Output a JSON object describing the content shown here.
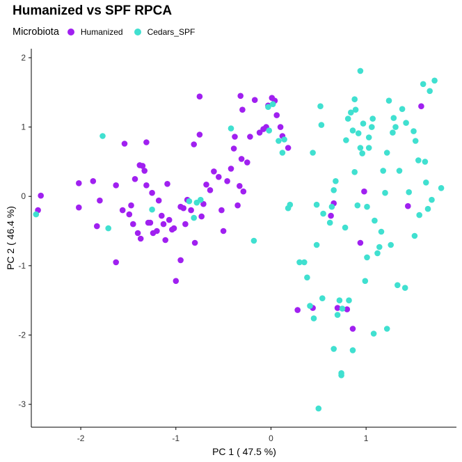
{
  "chart_data": {
    "type": "scatter",
    "title": "Humanized vs SPF RPCA",
    "xlabel": "PC 1 ( 47.5 %)",
    "ylabel": "PC 2 ( 46.4 %)",
    "xlim": [
      -2.52,
      1.95
    ],
    "ylim": [
      -3.33,
      2.13
    ],
    "x_ticks": [
      -2,
      -1,
      0,
      1
    ],
    "y_ticks": [
      -3,
      -2,
      -1,
      0,
      1,
      2
    ],
    "grid": false,
    "legend": {
      "title": "Microbiota",
      "position": "top-left"
    },
    "series": [
      {
        "name": "Humanized",
        "color": "#A020F0",
        "points": [
          [
            -2.42,
            0.01
          ],
          [
            -2.45,
            -0.2
          ],
          [
            -2.02,
            0.19
          ],
          [
            -2.02,
            -0.16
          ],
          [
            -1.87,
            0.22
          ],
          [
            -1.8,
            -0.06
          ],
          [
            -1.83,
            -0.43
          ],
          [
            -1.63,
            0.16
          ],
          [
            -1.63,
            -0.95
          ],
          [
            -1.56,
            -0.2
          ],
          [
            -1.54,
            0.76
          ],
          [
            -1.49,
            -0.26
          ],
          [
            -1.47,
            -0.13
          ],
          [
            -1.45,
            -0.4
          ],
          [
            -1.43,
            0.25
          ],
          [
            -1.4,
            -0.53
          ],
          [
            -1.38,
            0.45
          ],
          [
            -1.35,
            0.44
          ],
          [
            -1.37,
            -0.61
          ],
          [
            -1.33,
            0.37
          ],
          [
            -1.31,
            0.16
          ],
          [
            -1.29,
            -0.38
          ],
          [
            -1.31,
            0.78
          ],
          [
            -1.27,
            -0.38
          ],
          [
            -1.25,
            0.05
          ],
          [
            -1.24,
            -0.53
          ],
          [
            -1.2,
            -0.5
          ],
          [
            -1.18,
            -0.06
          ],
          [
            -1.15,
            -0.28
          ],
          [
            -1.13,
            -0.4
          ],
          [
            -1.11,
            -0.63
          ],
          [
            -1.09,
            0.18
          ],
          [
            -1.07,
            -0.34
          ],
          [
            -1.04,
            -0.48
          ],
          [
            -1.02,
            -0.46
          ],
          [
            -1.0,
            -1.22
          ],
          [
            -0.95,
            -0.92
          ],
          [
            -0.95,
            -0.15
          ],
          [
            -0.92,
            -0.17
          ],
          [
            -0.9,
            -0.4
          ],
          [
            -0.88,
            -0.05
          ],
          [
            -0.84,
            -0.2
          ],
          [
            -0.81,
            0.75
          ],
          [
            -0.8,
            -0.67
          ],
          [
            -0.75,
            1.44
          ],
          [
            -0.75,
            0.89
          ],
          [
            -0.73,
            -0.29
          ],
          [
            -0.71,
            -0.11
          ],
          [
            -0.68,
            0.17
          ],
          [
            -0.64,
            0.09
          ],
          [
            -0.6,
            0.36
          ],
          [
            -0.55,
            0.28
          ],
          [
            -0.52,
            -0.2
          ],
          [
            -0.5,
            -0.5
          ],
          [
            -0.46,
            0.22
          ],
          [
            -0.42,
            0.4
          ],
          [
            -0.39,
            0.69
          ],
          [
            -0.38,
            0.86
          ],
          [
            -0.35,
            -0.13
          ],
          [
            -0.33,
            0.15
          ],
          [
            -0.31,
            0.54
          ],
          [
            -0.32,
            1.45
          ],
          [
            -0.3,
            1.25
          ],
          [
            -0.29,
            0.07
          ],
          [
            -0.25,
            0.49
          ],
          [
            -0.22,
            0.86
          ],
          [
            -0.17,
            1.39
          ],
          [
            -0.12,
            0.92
          ],
          [
            -0.08,
            0.97
          ],
          [
            -0.05,
            1.0
          ],
          [
            -0.03,
            1.31
          ],
          [
            0.01,
            1.42
          ],
          [
            0.04,
            1.38
          ],
          [
            0.06,
            1.17
          ],
          [
            0.1,
            1.0
          ],
          [
            0.12,
            0.87
          ],
          [
            0.18,
            0.7
          ],
          [
            0.28,
            -1.64
          ],
          [
            0.44,
            -1.61
          ],
          [
            0.63,
            -0.28
          ],
          [
            0.66,
            -0.1
          ],
          [
            0.7,
            -1.61
          ],
          [
            0.8,
            -1.63
          ],
          [
            0.86,
            -1.91
          ],
          [
            0.94,
            -0.67
          ],
          [
            0.98,
            0.07
          ],
          [
            1.44,
            -0.14
          ],
          [
            1.58,
            1.3
          ]
        ]
      },
      {
        "name": "Cedars_SPF",
        "color": "#40E0D0",
        "points": [
          [
            -2.47,
            -0.26
          ],
          [
            -1.77,
            0.87
          ],
          [
            -1.71,
            -0.46
          ],
          [
            -1.25,
            -0.19
          ],
          [
            -0.86,
            -0.07
          ],
          [
            -0.81,
            -0.31
          ],
          [
            -0.78,
            -0.09
          ],
          [
            -0.74,
            -0.05
          ],
          [
            -0.42,
            0.98
          ],
          [
            -0.18,
            -0.64
          ],
          [
            -0.03,
            1.29
          ],
          [
            -0.02,
            0.95
          ],
          [
            0.02,
            1.33
          ],
          [
            0.08,
            0.8
          ],
          [
            0.12,
            0.63
          ],
          [
            0.14,
            0.82
          ],
          [
            0.18,
            -0.17
          ],
          [
            0.2,
            -0.12
          ],
          [
            0.3,
            -0.95
          ],
          [
            0.35,
            -0.95
          ],
          [
            0.38,
            -1.17
          ],
          [
            0.41,
            -1.58
          ],
          [
            0.44,
            0.63
          ],
          [
            0.45,
            -1.76
          ],
          [
            0.48,
            -0.7
          ],
          [
            0.48,
            -0.12
          ],
          [
            0.5,
            -3.06
          ],
          [
            0.52,
            1.3
          ],
          [
            0.53,
            1.03
          ],
          [
            0.54,
            -1.47
          ],
          [
            0.55,
            -0.25
          ],
          [
            0.62,
            -0.38
          ],
          [
            0.64,
            -0.15
          ],
          [
            0.66,
            -2.2
          ],
          [
            0.66,
            0.09
          ],
          [
            0.68,
            0.22
          ],
          [
            0.7,
            -1.71
          ],
          [
            0.72,
            -1.5
          ],
          [
            0.74,
            -2.55
          ],
          [
            0.74,
            -2.58
          ],
          [
            0.75,
            -1.62
          ],
          [
            0.78,
            -0.45
          ],
          [
            0.79,
            0.81
          ],
          [
            0.81,
            1.12
          ],
          [
            0.82,
            -1.5
          ],
          [
            0.84,
            1.21
          ],
          [
            0.86,
            -2.22
          ],
          [
            0.86,
            0.95
          ],
          [
            0.88,
            1.4
          ],
          [
            0.88,
            0.35
          ],
          [
            0.89,
            1.25
          ],
          [
            0.91,
            -0.13
          ],
          [
            0.92,
            0.91
          ],
          [
            0.94,
            0.7
          ],
          [
            0.94,
            1.81
          ],
          [
            0.96,
            0.62
          ],
          [
            0.97,
            1.05
          ],
          [
            0.99,
            -1.22
          ],
          [
            1.01,
            -0.88
          ],
          [
            1.01,
            -0.15
          ],
          [
            1.03,
            0.7
          ],
          [
            1.03,
            0.85
          ],
          [
            1.06,
            1.0
          ],
          [
            1.07,
            1.12
          ],
          [
            1.08,
            -1.98
          ],
          [
            1.09,
            -0.35
          ],
          [
            1.12,
            -0.82
          ],
          [
            1.14,
            -0.73
          ],
          [
            1.16,
            -0.51
          ],
          [
            1.18,
            0.37
          ],
          [
            1.2,
            0.05
          ],
          [
            1.22,
            -1.91
          ],
          [
            1.22,
            0.63
          ],
          [
            1.24,
            1.38
          ],
          [
            1.26,
            -0.7
          ],
          [
            1.28,
            0.92
          ],
          [
            1.29,
            1.13
          ],
          [
            1.31,
            1.0
          ],
          [
            1.33,
            -1.28
          ],
          [
            1.35,
            0.37
          ],
          [
            1.38,
            1.26
          ],
          [
            1.41,
            -1.32
          ],
          [
            1.42,
            1.06
          ],
          [
            1.45,
            0.06
          ],
          [
            1.5,
            0.94
          ],
          [
            1.51,
            -0.57
          ],
          [
            1.52,
            0.8
          ],
          [
            1.55,
            0.52
          ],
          [
            1.56,
            -0.27
          ],
          [
            1.6,
            1.62
          ],
          [
            1.62,
            0.5
          ],
          [
            1.63,
            0.2
          ],
          [
            1.65,
            -0.18
          ],
          [
            1.67,
            1.52
          ],
          [
            1.69,
            -0.05
          ],
          [
            1.72,
            1.67
          ],
          [
            1.79,
            0.12
          ]
        ]
      }
    ]
  }
}
